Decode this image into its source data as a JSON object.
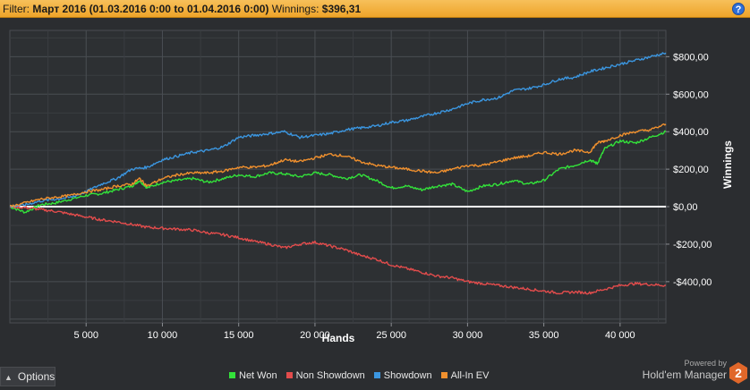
{
  "filter": {
    "label": "Filter:",
    "value": "Март 2016 (01.03.2016 0:00 to 01.04.2016 0:00)",
    "winnings_label": "Winnings:",
    "winnings_value": "$396,31"
  },
  "help_label": "?",
  "options": {
    "label": "Options"
  },
  "brand": {
    "powered": "Powered by",
    "name": "Hold'em Manager",
    "logo_text": "2"
  },
  "colors": {
    "net_won": "#33e23a",
    "non_showdown": "#e24c4c",
    "showdown": "#3b96e0",
    "all_in_ev": "#f0902e",
    "zero_line": "#ffffff"
  },
  "chart_data": {
    "type": "line",
    "xlabel": "Hands",
    "ylabel": "Winnings",
    "xlim": [
      0,
      43000
    ],
    "ylim": [
      -620,
      940
    ],
    "x_ticks": [
      5000,
      10000,
      15000,
      20000,
      25000,
      30000,
      35000,
      40000
    ],
    "x_tick_labels": [
      "5 000",
      "10 000",
      "15 000",
      "20 000",
      "25 000",
      "30 000",
      "35 000",
      "40 000"
    ],
    "y_ticks": [
      800,
      600,
      400,
      200,
      0,
      -200,
      -400
    ],
    "y_tick_labels": [
      "$800,00",
      "$600,00",
      "$400,00",
      "$200,00",
      "$0,00",
      "-$200,00",
      "-$400,00"
    ],
    "grid": true,
    "legend_position": "bottom",
    "series": [
      {
        "name": "Net Won",
        "color": "#33e23a",
        "x": [
          0,
          1000,
          2000,
          3000,
          4000,
          5000,
          6000,
          7000,
          8000,
          8500,
          9000,
          10000,
          11000,
          12000,
          13000,
          14000,
          15000,
          16000,
          17000,
          18000,
          19000,
          20000,
          21000,
          22000,
          23000,
          24000,
          25000,
          26000,
          27000,
          28000,
          29000,
          30000,
          31000,
          32000,
          33000,
          34000,
          35000,
          36000,
          37000,
          38000,
          38500,
          39000,
          40000,
          41000,
          42000,
          43000
        ],
        "values": [
          0,
          -30,
          10,
          20,
          40,
          60,
          70,
          90,
          110,
          140,
          100,
          130,
          140,
          150,
          130,
          150,
          170,
          160,
          180,
          175,
          160,
          180,
          170,
          150,
          170,
          140,
          100,
          110,
          90,
          110,
          120,
          80,
          110,
          120,
          140,
          120,
          140,
          200,
          220,
          250,
          230,
          310,
          350,
          340,
          370,
          400
        ]
      },
      {
        "name": "Non Showdown",
        "color": "#e24c4c",
        "x": [
          0,
          1000,
          2000,
          3000,
          4000,
          5000,
          6000,
          7000,
          8000,
          9000,
          10000,
          11000,
          12000,
          13000,
          14000,
          15000,
          16000,
          17000,
          18000,
          19000,
          20000,
          21000,
          22000,
          23000,
          24000,
          25000,
          26000,
          27000,
          28000,
          29000,
          30000,
          31000,
          32000,
          33000,
          34000,
          35000,
          36000,
          37000,
          38000,
          39000,
          40000,
          41000,
          42000,
          43000
        ],
        "values": [
          0,
          -5,
          -15,
          -25,
          -40,
          -55,
          -70,
          -80,
          -95,
          -110,
          -115,
          -120,
          -125,
          -140,
          -150,
          -165,
          -185,
          -200,
          -220,
          -200,
          -190,
          -210,
          -230,
          -260,
          -280,
          -310,
          -330,
          -350,
          -370,
          -380,
          -400,
          -410,
          -420,
          -430,
          -440,
          -450,
          -460,
          -455,
          -460,
          -440,
          -420,
          -410,
          -415,
          -420
        ]
      },
      {
        "name": "Showdown",
        "color": "#3b96e0",
        "x": [
          0,
          1000,
          2000,
          3000,
          4000,
          5000,
          6000,
          7000,
          8000,
          9000,
          10000,
          11000,
          12000,
          13000,
          14000,
          15000,
          16000,
          17000,
          18000,
          19000,
          20000,
          21000,
          22000,
          23000,
          24000,
          25000,
          26000,
          27000,
          28000,
          29000,
          30000,
          31000,
          32000,
          33000,
          34000,
          35000,
          36000,
          37000,
          38000,
          39000,
          40000,
          41000,
          42000,
          43000
        ],
        "values": [
          0,
          10,
          30,
          40,
          50,
          80,
          120,
          150,
          200,
          210,
          250,
          270,
          290,
          300,
          320,
          370,
          380,
          390,
          400,
          370,
          380,
          390,
          410,
          420,
          430,
          450,
          460,
          480,
          500,
          520,
          550,
          570,
          580,
          620,
          630,
          650,
          680,
          690,
          720,
          740,
          760,
          780,
          800,
          820
        ]
      },
      {
        "name": "All-In EV",
        "color": "#f0902e",
        "x": [
          0,
          1000,
          2000,
          3000,
          4000,
          5000,
          6000,
          7000,
          8000,
          8500,
          9000,
          10000,
          11000,
          12000,
          13000,
          14000,
          15000,
          16000,
          17000,
          18000,
          19000,
          20000,
          21000,
          22000,
          23000,
          24000,
          25000,
          26000,
          27000,
          28000,
          29000,
          30000,
          31000,
          32000,
          33000,
          34000,
          35000,
          36000,
          37000,
          38000,
          38500,
          39000,
          40000,
          41000,
          42000,
          43000
        ],
        "values": [
          0,
          20,
          40,
          50,
          60,
          80,
          90,
          110,
          120,
          150,
          110,
          150,
          170,
          180,
          180,
          190,
          210,
          210,
          220,
          250,
          240,
          260,
          280,
          270,
          240,
          220,
          210,
          200,
          190,
          180,
          200,
          220,
          220,
          240,
          260,
          270,
          290,
          280,
          300,
          290,
          340,
          350,
          380,
          400,
          410,
          440
        ]
      }
    ]
  }
}
